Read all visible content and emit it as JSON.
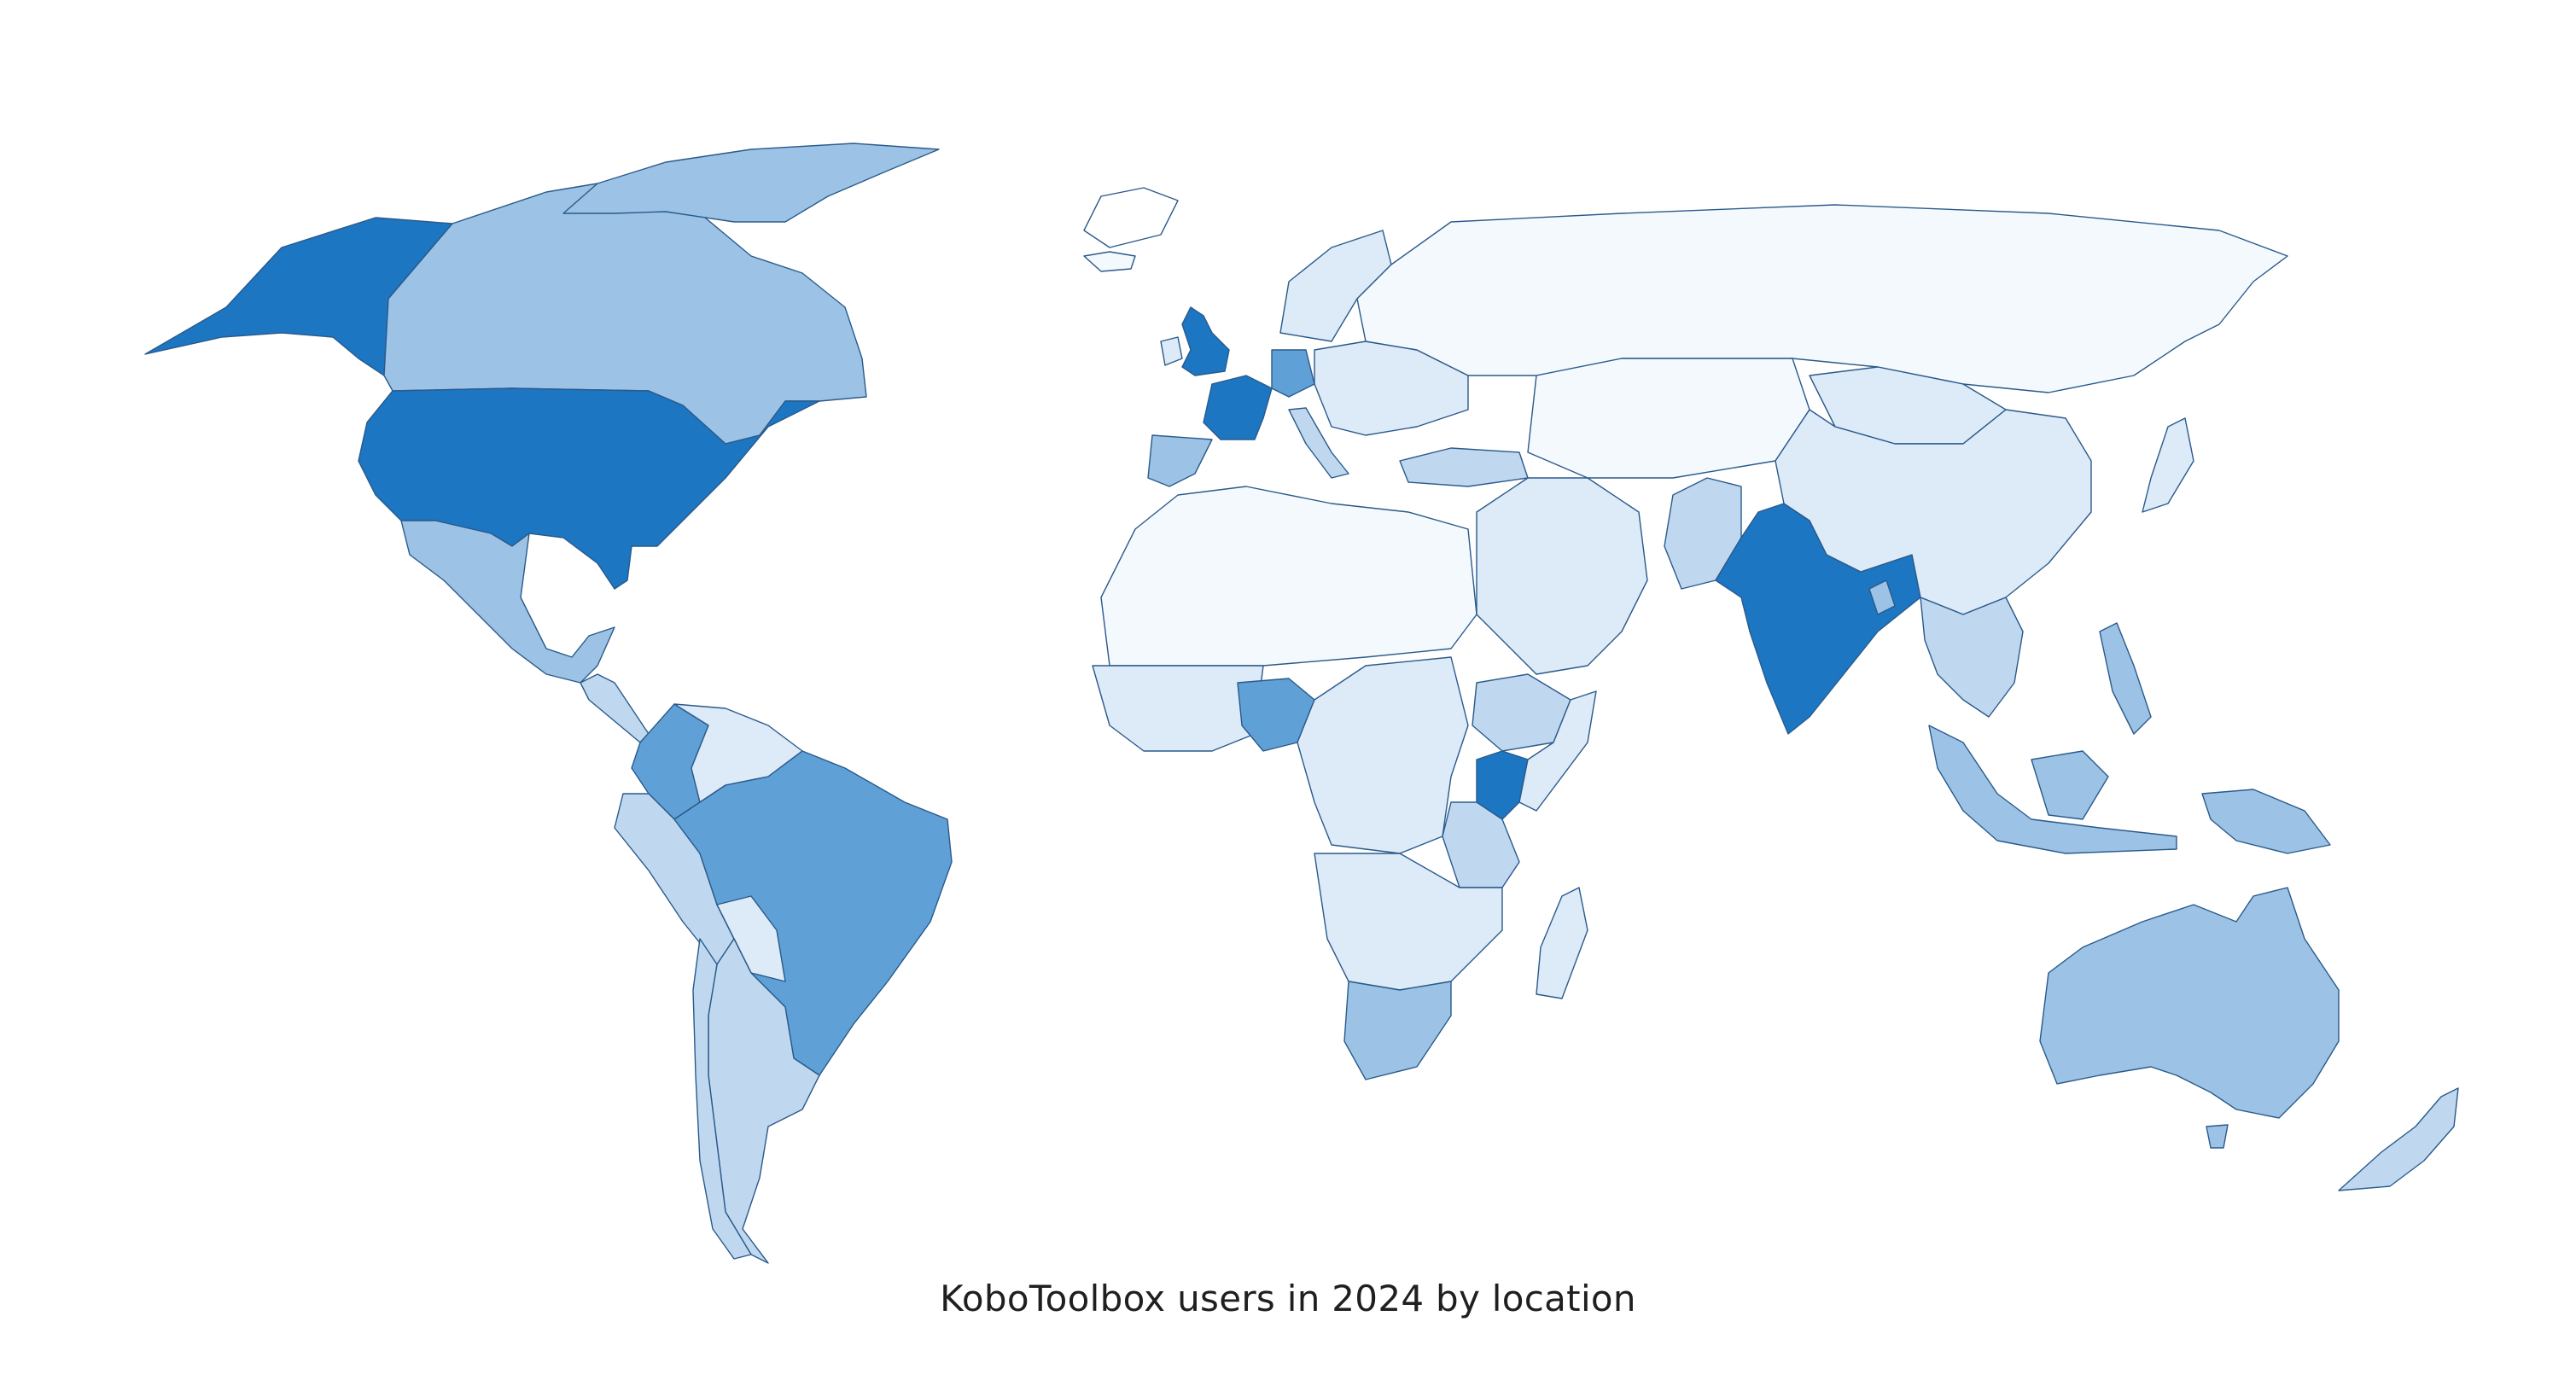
{
  "map": {
    "title": "KoboToolbox users in 2024 by location",
    "color_scale": {
      "level_0": "#f4f9fe",
      "level_1": "#ddeaf8",
      "level_2": "#bfd8f0",
      "level_3": "#9cc3e6",
      "level_4": "#5fa0d6",
      "level_5": "#1c76c2"
    },
    "border_color": "#2a5a8a",
    "regions": [
      {
        "name": "Alaska (USA)",
        "level": 5
      },
      {
        "name": "Canada",
        "level": 3
      },
      {
        "name": "Greenland",
        "level": 0
      },
      {
        "name": "United States",
        "level": 5
      },
      {
        "name": "Mexico",
        "level": 3
      },
      {
        "name": "Central America",
        "level": 2
      },
      {
        "name": "Colombia",
        "level": 4
      },
      {
        "name": "Venezuela",
        "level": 1
      },
      {
        "name": "Peru",
        "level": 2
      },
      {
        "name": "Bolivia",
        "level": 1
      },
      {
        "name": "Brazil",
        "level": 4
      },
      {
        "name": "Argentina",
        "level": 2
      },
      {
        "name": "Chile",
        "level": 2
      },
      {
        "name": "Iceland",
        "level": 0
      },
      {
        "name": "United Kingdom",
        "level": 5
      },
      {
        "name": "France",
        "level": 5
      },
      {
        "name": "Spain",
        "level": 3
      },
      {
        "name": "Germany",
        "level": 4
      },
      {
        "name": "Italy",
        "level": 2
      },
      {
        "name": "Scandinavia",
        "level": 1
      },
      {
        "name": "Eastern Europe",
        "level": 1
      },
      {
        "name": "Turkey",
        "level": 2
      },
      {
        "name": "Russia",
        "level": 0
      },
      {
        "name": "North Africa",
        "level": 0
      },
      {
        "name": "West Africa",
        "level": 1
      },
      {
        "name": "Nigeria",
        "level": 4
      },
      {
        "name": "Central Africa",
        "level": 1
      },
      {
        "name": "Ethiopia",
        "level": 2
      },
      {
        "name": "Kenya",
        "level": 5
      },
      {
        "name": "Tanzania",
        "level": 2
      },
      {
        "name": "Southern Africa",
        "level": 1
      },
      {
        "name": "South Africa",
        "level": 3
      },
      {
        "name": "Madagascar",
        "level": 1
      },
      {
        "name": "Middle East",
        "level": 1
      },
      {
        "name": "Central Asia",
        "level": 0
      },
      {
        "name": "Pakistan",
        "level": 2
      },
      {
        "name": "India",
        "level": 5
      },
      {
        "name": "Bangladesh",
        "level": 3
      },
      {
        "name": "Mongolia",
        "level": 1
      },
      {
        "name": "China",
        "level": 1
      },
      {
        "name": "Japan",
        "level": 1
      },
      {
        "name": "Southeast Asia",
        "level": 2
      },
      {
        "name": "Philippines",
        "level": 3
      },
      {
        "name": "Indonesia",
        "level": 3
      },
      {
        "name": "Papua New Guinea",
        "level": 3
      },
      {
        "name": "Australia",
        "level": 3
      },
      {
        "name": "New Zealand",
        "level": 2
      }
    ]
  }
}
